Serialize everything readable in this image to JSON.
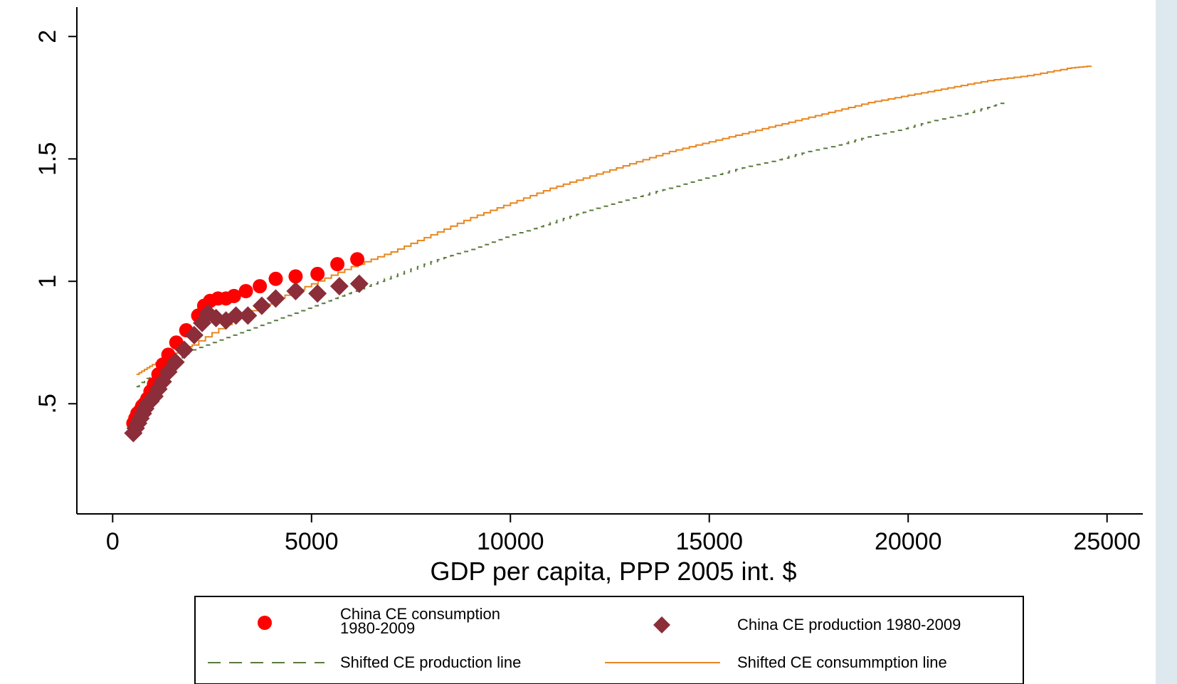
{
  "chart_data": {
    "type": "scatter",
    "title": "",
    "xlabel": "GDP per capita, PPP 2005 int. $",
    "ylabel": "",
    "xlim": [
      -900,
      25900
    ],
    "ylim": [
      0.05,
      2.12
    ],
    "x_ticks": [
      0,
      5000,
      10000,
      15000,
      20000,
      25000
    ],
    "x_tick_labels": [
      "0",
      "5000",
      "10000",
      "15000",
      "20000",
      "25000"
    ],
    "y_ticks": [
      0.5,
      1,
      1.5,
      2
    ],
    "y_tick_labels": [
      ".5",
      "1",
      "1.5",
      "2"
    ],
    "grid": false,
    "legend_position": "bottom",
    "colors": {
      "consumption": "#ff0000",
      "production": "#8b2e3a",
      "prod_line": "#5a7a3a",
      "cons_line": "#e8861f"
    },
    "series": [
      {
        "name": "China CE consumption 1980-2009",
        "kind": "scatter",
        "marker": "circle",
        "color": "#ff0000",
        "points": [
          [
            520,
            0.42
          ],
          [
            570,
            0.44
          ],
          [
            620,
            0.46
          ],
          [
            680,
            0.47
          ],
          [
            740,
            0.49
          ],
          [
            800,
            0.5
          ],
          [
            870,
            0.52
          ],
          [
            950,
            0.55
          ],
          [
            1040,
            0.58
          ],
          [
            1150,
            0.62
          ],
          [
            1260,
            0.66
          ],
          [
            1400,
            0.7
          ],
          [
            1600,
            0.75
          ],
          [
            1850,
            0.8
          ],
          [
            2150,
            0.86
          ],
          [
            2300,
            0.9
          ],
          [
            2450,
            0.92
          ],
          [
            2650,
            0.93
          ],
          [
            2850,
            0.93
          ],
          [
            3050,
            0.94
          ],
          [
            3350,
            0.96
          ],
          [
            3700,
            0.98
          ],
          [
            4100,
            1.01
          ],
          [
            4600,
            1.02
          ],
          [
            5150,
            1.03
          ],
          [
            5650,
            1.07
          ],
          [
            6150,
            1.09
          ]
        ]
      },
      {
        "name": "China CE production 1980-2009",
        "kind": "scatter",
        "marker": "diamond",
        "color": "#8b2e3a",
        "points": [
          [
            520,
            0.38
          ],
          [
            580,
            0.4
          ],
          [
            640,
            0.42
          ],
          [
            700,
            0.44
          ],
          [
            760,
            0.46
          ],
          [
            820,
            0.48
          ],
          [
            880,
            0.5
          ],
          [
            950,
            0.51
          ],
          [
            1050,
            0.53
          ],
          [
            1150,
            0.56
          ],
          [
            1260,
            0.59
          ],
          [
            1400,
            0.63
          ],
          [
            1580,
            0.67
          ],
          [
            1800,
            0.72
          ],
          [
            2050,
            0.78
          ],
          [
            2250,
            0.83
          ],
          [
            2400,
            0.87
          ],
          [
            2600,
            0.85
          ],
          [
            2850,
            0.84
          ],
          [
            3100,
            0.86
          ],
          [
            3400,
            0.86
          ],
          [
            3750,
            0.9
          ],
          [
            4100,
            0.93
          ],
          [
            4600,
            0.96
          ],
          [
            5150,
            0.95
          ],
          [
            5700,
            0.98
          ],
          [
            6200,
            0.99
          ]
        ]
      },
      {
        "name": "Shifted CE production line",
        "kind": "line",
        "style": "dashed",
        "color": "#5a7a3a",
        "points": [
          [
            600,
            0.57
          ],
          [
            1000,
            0.62
          ],
          [
            1500,
            0.67
          ],
          [
            2000,
            0.72
          ],
          [
            3000,
            0.78
          ],
          [
            4000,
            0.84
          ],
          [
            5000,
            0.9
          ],
          [
            6000,
            0.96
          ],
          [
            7000,
            1.02
          ],
          [
            8000,
            1.08
          ],
          [
            9000,
            1.13
          ],
          [
            10000,
            1.19
          ],
          [
            11000,
            1.24
          ],
          [
            12000,
            1.29
          ],
          [
            13000,
            1.34
          ],
          [
            14000,
            1.38
          ],
          [
            15000,
            1.43
          ],
          [
            16000,
            1.47
          ],
          [
            17000,
            1.51
          ],
          [
            18000,
            1.55
          ],
          [
            19000,
            1.59
          ],
          [
            20000,
            1.63
          ],
          [
            21000,
            1.67
          ],
          [
            22000,
            1.71
          ],
          [
            22400,
            1.73
          ]
        ]
      },
      {
        "name": "Shifted CE consummption line",
        "kind": "line",
        "style": "solid",
        "color": "#e8861f",
        "points": [
          [
            600,
            0.62
          ],
          [
            1000,
            0.66
          ],
          [
            1500,
            0.7
          ],
          [
            2000,
            0.74
          ],
          [
            3000,
            0.84
          ],
          [
            4000,
            0.92
          ],
          [
            5000,
            0.99
          ],
          [
            6000,
            1.06
          ],
          [
            7000,
            1.12
          ],
          [
            8000,
            1.19
          ],
          [
            9000,
            1.26
          ],
          [
            10000,
            1.32
          ],
          [
            11000,
            1.38
          ],
          [
            12000,
            1.43
          ],
          [
            13000,
            1.48
          ],
          [
            14000,
            1.53
          ],
          [
            15000,
            1.57
          ],
          [
            16000,
            1.61
          ],
          [
            17000,
            1.65
          ],
          [
            18000,
            1.69
          ],
          [
            19000,
            1.73
          ],
          [
            20000,
            1.76
          ],
          [
            21000,
            1.79
          ],
          [
            22000,
            1.82
          ],
          [
            23000,
            1.84
          ],
          [
            24000,
            1.87
          ],
          [
            24600,
            1.88
          ]
        ]
      }
    ],
    "legend": [
      {
        "label": "China CE consumption\n1980-2009",
        "marker": "circle",
        "color": "#ff0000"
      },
      {
        "label": "China CE production 1980-2009",
        "marker": "diamond",
        "color": "#8b2e3a"
      },
      {
        "label": "Shifted CE production line",
        "marker": "dashed-line",
        "color": "#5a7a3a"
      },
      {
        "label": "Shifted CE consummption line",
        "marker": "solid-line",
        "color": "#e8861f"
      }
    ]
  }
}
